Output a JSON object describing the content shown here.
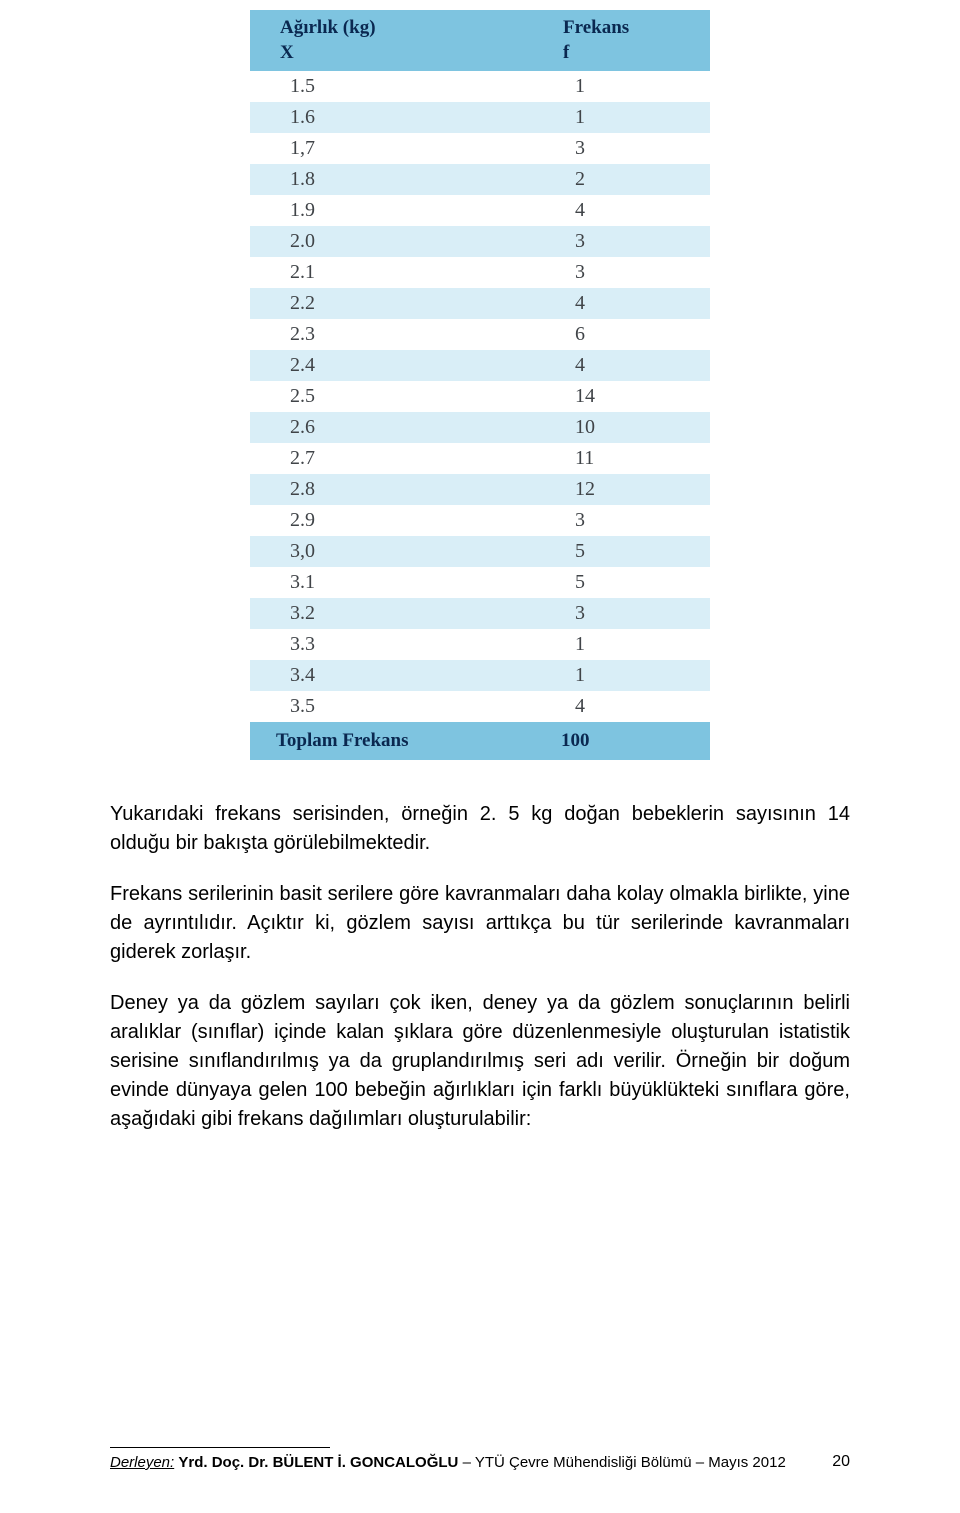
{
  "table": {
    "header_col1_line1": "Ağırlık (kg)",
    "header_col1_line2": "X",
    "header_col2_line1": "Frekans",
    "header_col2_line2": "f",
    "header_bg": "#7ec4e0",
    "header_color": "#0a2850",
    "even_row_bg": "#d9eef7",
    "odd_row_bg": "#ffffff",
    "cell_color": "#404448",
    "rows": [
      {
        "x": "1.5",
        "f": "1"
      },
      {
        "x": "1.6",
        "f": "1"
      },
      {
        "x": "1,7",
        "f": "3"
      },
      {
        "x": "1.8",
        "f": "2"
      },
      {
        "x": "1.9",
        "f": "4"
      },
      {
        "x": "2.0",
        "f": "3"
      },
      {
        "x": "2.1",
        "f": "3"
      },
      {
        "x": "2.2",
        "f": "4"
      },
      {
        "x": "2.3",
        "f": "6"
      },
      {
        "x": "2.4",
        "f": "4"
      },
      {
        "x": "2.5",
        "f": "14"
      },
      {
        "x": "2.6",
        "f": "10"
      },
      {
        "x": "2.7",
        "f": "11"
      },
      {
        "x": "2.8",
        "f": "12"
      },
      {
        "x": "2.9",
        "f": "3"
      },
      {
        "x": "3,0",
        "f": "5"
      },
      {
        "x": "3.1",
        "f": "5"
      },
      {
        "x": "3.2",
        "f": "3"
      },
      {
        "x": "3.3",
        "f": "1"
      },
      {
        "x": "3.4",
        "f": "1"
      },
      {
        "x": "3.5",
        "f": "4"
      }
    ],
    "total_label": "Toplam Frekans",
    "total_value": "100"
  },
  "paragraphs": {
    "p1": "Yukarıdaki frekans serisinden, örneğin 2. 5 kg doğan bebeklerin sayısının 14 olduğu bir bakışta görülebilmektedir.",
    "p2": "Frekans serilerinin basit serilere göre kavranmaları daha kolay olmakla birlikte, yine de ayrıntılıdır. Açıktır ki, gözlem sayısı arttıkça bu tür serilerinde kavranmaları giderek zorlaşır.",
    "p3": "Deney ya da gözlem sayıları çok iken, deney ya da gözlem sonuçlarının belirli aralıklar (sınıflar) içinde kalan şıklara göre düzenlenmesiyle oluşturulan istatistik serisine sınıflandırılmış ya da gruplandırılmış seri adı verilir. Örneğin bir doğum evinde dünyaya gelen 100 bebeğin ağırlıkları için farklı büyüklükteki sınıflara göre, aşağıdaki gibi frekans dağılımları oluşturulabilir:"
  },
  "footer": {
    "label": "Derleyen:",
    "author": "Yrd. Doç. Dr. BÜLENT İ. GONCALOĞLU",
    "institution": "YTÜ Çevre Mühendisliği Bölümü – Mayıs 2012",
    "page_number": "20"
  }
}
